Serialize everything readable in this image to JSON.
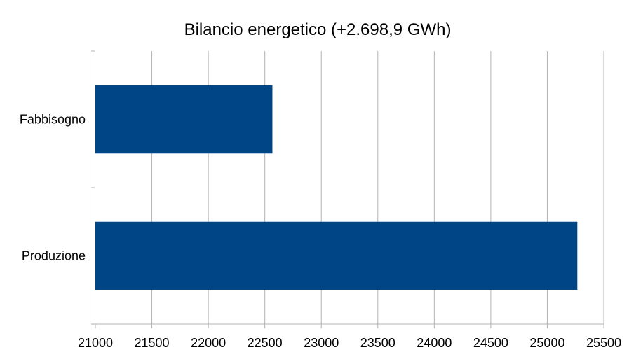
{
  "chart_data": {
    "type": "bar",
    "orientation": "horizontal",
    "title": "Bilancio energetico (+2.698,9 GWh)",
    "xlabel": "",
    "ylabel": "",
    "categories": [
      "Fabbisogno",
      "Produzione"
    ],
    "values": [
      22567,
      25266
    ],
    "xlim": [
      21000,
      25500
    ],
    "xticks": [
      "21000",
      "21500",
      "22000",
      "22500",
      "23000",
      "23500",
      "24000",
      "24500",
      "25000",
      "25500"
    ],
    "grid": true,
    "legend": "none",
    "bar_color": "#004586"
  }
}
